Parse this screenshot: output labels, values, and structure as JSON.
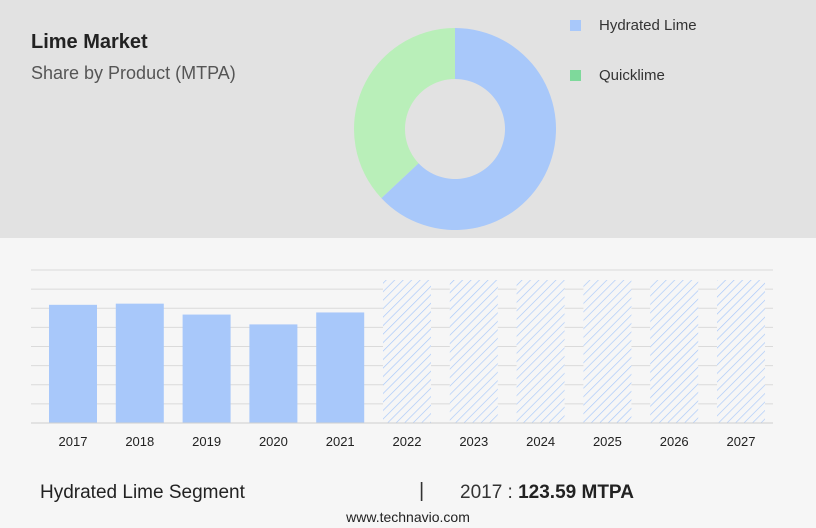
{
  "header": {
    "title": "Lime Market",
    "subtitle": "Share by Product (MTPA)"
  },
  "colors": {
    "hydrated_lime": "#a8c8fa",
    "quicklime": "#b9efb9",
    "quicklime_legend": "#7ed99b",
    "hatch": "#a8c8fa"
  },
  "chart_data": [
    {
      "type": "pie",
      "variant": "donut",
      "labels": [
        "Hydrated Lime",
        "Quicklime"
      ],
      "values": [
        63,
        37
      ],
      "legend_position": "top-right"
    },
    {
      "type": "bar",
      "categories": [
        "2017",
        "2018",
        "2019",
        "2020",
        "2021",
        "2022",
        "2023",
        "2024",
        "2025",
        "2026",
        "2027"
      ],
      "values": [
        123.59,
        124.8,
        113.4,
        103.1,
        115.6,
        null,
        null,
        null,
        null,
        null,
        null
      ],
      "forecast_categories": [
        "2022",
        "2023",
        "2024",
        "2025",
        "2026",
        "2027"
      ],
      "ylim": [
        0,
        160
      ],
      "grid": true
    }
  ],
  "footer": {
    "segment": "Hydrated Lime Segment",
    "separator": "|",
    "year_label": "2017 :",
    "value": "123.59 MTPA",
    "site": "www.technavio.com"
  }
}
